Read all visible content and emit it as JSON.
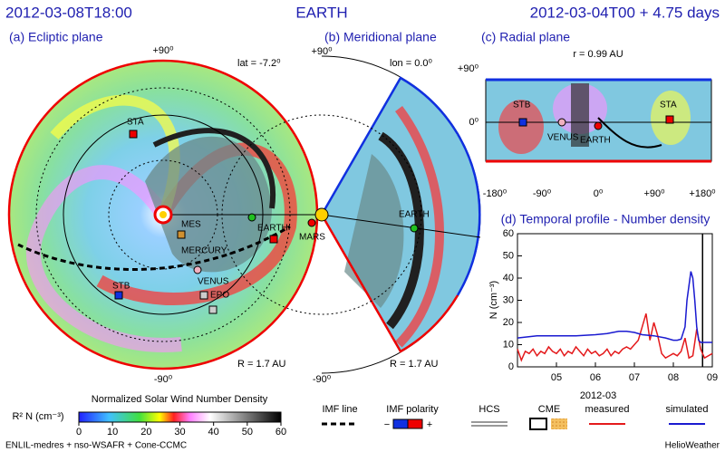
{
  "header": {
    "left": "2012-03-08T18:00",
    "center": "EARTH",
    "right": "2012-03-04T00 + 4.75 days"
  },
  "ecliptic": {
    "title": "(a) Ecliptic plane",
    "top": "+90⁰",
    "bottom": "-90⁰",
    "lat": "lat = -7.2⁰",
    "radius": "R = 1.7 AU",
    "labels": [
      "STA",
      "MES",
      "MERCURY",
      "EARTH",
      "MARS",
      "STB",
      "VENUS",
      "EPO"
    ]
  },
  "meridional": {
    "title": "(b) Meridional plane",
    "top": "+90⁰",
    "bottom": "-90⁰",
    "lon": "lon = 0.0⁰",
    "radius": "R = 1.7 AU",
    "labels": [
      "EARTH"
    ]
  },
  "radial": {
    "title": "(c) Radial plane",
    "radius": "r = 0.99 AU",
    "yticks": [
      "+90⁰",
      "0⁰"
    ],
    "xticks": [
      "-180⁰",
      "-90⁰",
      "0⁰",
      "+90⁰",
      "+180⁰"
    ],
    "labels": [
      "STB",
      "STA",
      "VENUS",
      "EARTH"
    ]
  },
  "chart_data": {
    "type": "line",
    "title": "(d) Temporal profile - Number density",
    "ylabel": "N (cm⁻³)",
    "xlabel": "2012-03",
    "xlim": [
      4,
      9
    ],
    "ylim": [
      0,
      60
    ],
    "xticks": [
      {
        "value": 5,
        "label": "05"
      },
      {
        "value": 6,
        "label": "06"
      },
      {
        "value": 7,
        "label": "07"
      },
      {
        "value": 8,
        "label": "08"
      },
      {
        "value": 9,
        "label": "09"
      }
    ],
    "yticks": [
      0,
      10,
      20,
      30,
      40,
      50,
      60
    ],
    "now": 8.75,
    "series": [
      {
        "name": "measured",
        "color": "#e41a1c",
        "x": [
          4.0,
          4.1,
          4.2,
          4.3,
          4.4,
          4.5,
          4.6,
          4.7,
          4.8,
          4.9,
          5.0,
          5.1,
          5.2,
          5.3,
          5.4,
          5.5,
          5.6,
          5.7,
          5.8,
          5.9,
          6.0,
          6.1,
          6.2,
          6.3,
          6.4,
          6.5,
          6.6,
          6.7,
          6.8,
          6.9,
          7.0,
          7.1,
          7.2,
          7.3,
          7.4,
          7.5,
          7.6,
          7.7,
          7.8,
          7.9,
          8.0,
          8.1,
          8.2,
          8.3,
          8.4,
          8.5,
          8.6,
          8.7,
          8.8,
          8.9,
          9.0
        ],
        "values": [
          8,
          3,
          7,
          6,
          8,
          5,
          7,
          6,
          9,
          7,
          6,
          8,
          5,
          7,
          6,
          9,
          7,
          5,
          8,
          6,
          7,
          5,
          6,
          8,
          5,
          7,
          6,
          8,
          9,
          8,
          10,
          12,
          18,
          24,
          12,
          20,
          14,
          6,
          4,
          5,
          6,
          5,
          7,
          13,
          4,
          5,
          17,
          8,
          4,
          5,
          6
        ]
      },
      {
        "name": "simulated",
        "color": "#1a1ad0",
        "x": [
          4.0,
          4.5,
          5.0,
          5.5,
          6.0,
          6.3,
          6.6,
          6.8,
          7.0,
          7.2,
          7.5,
          7.8,
          8.0,
          8.1,
          8.2,
          8.3,
          8.35,
          8.45,
          8.5,
          8.55,
          8.6,
          8.65,
          8.7,
          8.8,
          9.0
        ],
        "values": [
          13,
          14,
          14,
          14,
          14.5,
          15,
          16,
          16,
          15.5,
          14.5,
          14,
          13,
          12,
          12,
          12.5,
          18,
          30,
          43,
          40,
          30,
          18,
          12,
          11,
          11,
          11
        ]
      }
    ]
  },
  "colorbar": {
    "title": "Normalized Solar Wind Number Density",
    "unit": "R² N (cm⁻³)",
    "ticks": [
      0,
      10,
      20,
      30,
      40,
      50,
      60
    ]
  },
  "legend": {
    "imf_line": "IMF line",
    "imf_polarity": "IMF polarity",
    "minus": "−",
    "plus": "+",
    "hcs": "HCS",
    "cme": "CME"
  },
  "footer": {
    "left": "ENLIL-medres + nso-WSAFR + Cone-CCMC",
    "right": "HelioWeather"
  }
}
